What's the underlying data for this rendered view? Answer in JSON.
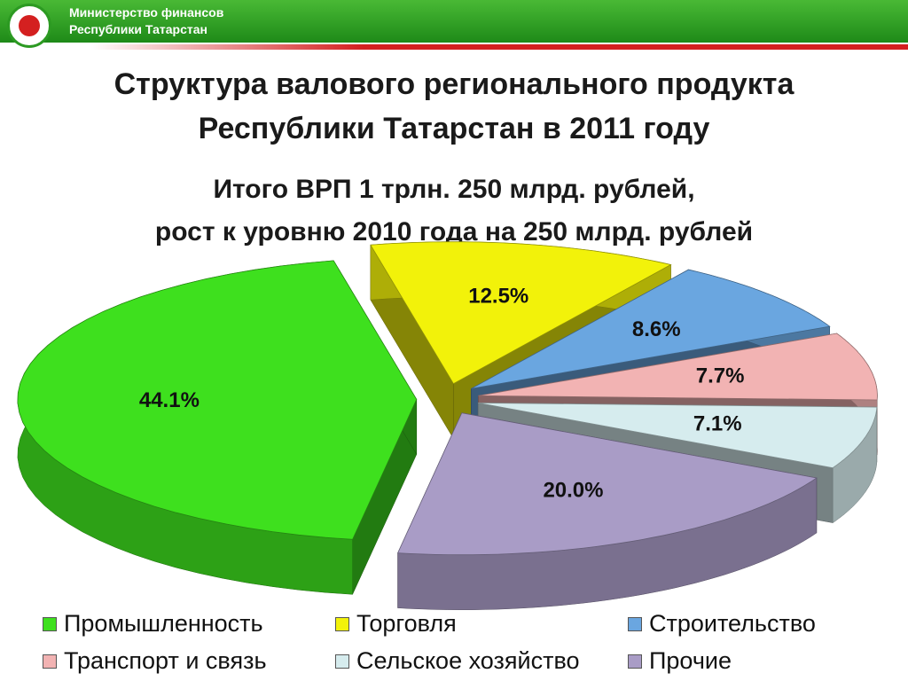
{
  "header": {
    "org_lines": [
      "Министерство финансов",
      "Республики Татарстан"
    ]
  },
  "chart_data": {
    "type": "pie3d",
    "title": [
      "Структура валового регионального продукта",
      "Республики Татарстан в 2011 году"
    ],
    "subtitle": [
      "Итого ВРП 1 трлн. 250 млрд. рублей,",
      "рост к уровню 2010 года на 250 млрд. рублей"
    ],
    "categories": [
      "Промышленность",
      "Торговля",
      "Строительство",
      "Транспорт и связь",
      "Сельское хозяйство",
      "Прочие"
    ],
    "values": [
      44.1,
      12.5,
      8.6,
      7.7,
      7.1,
      20.0
    ],
    "value_labels": [
      "44.1%",
      "12.5%",
      "8.6%",
      "7.7%",
      "7.1%",
      "20.0%"
    ],
    "colors": [
      "#3ee01e",
      "#f2f20a",
      "#6aa6e0",
      "#f2b3b3",
      "#d6ecee",
      "#a99cc6"
    ],
    "legend": "bottom"
  }
}
